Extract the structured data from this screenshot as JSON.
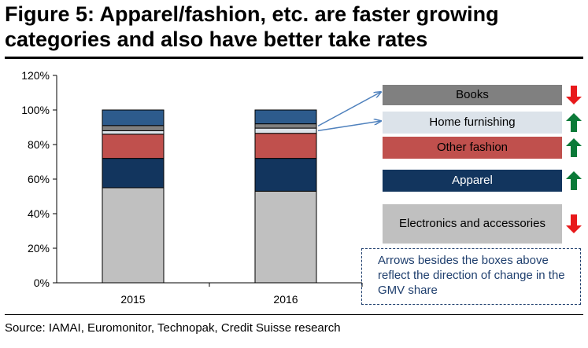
{
  "title": {
    "line1": "Figure 5: Apparel/fashion, etc. are faster growing",
    "line2": "categories and also have better take rates"
  },
  "source": "Source: IAMAI, Euromonitor, Technopak, Credit Suisse research",
  "note": "Arrows besides the boxes above reflect the direction of change in the GMV share",
  "colors": {
    "electronics": "#c0c0c0",
    "apparel": "#12355e",
    "other_fashion": "#c0504d",
    "home_furnishing": "#dce3ea",
    "books": "#808080",
    "others": "#2d5b8c",
    "arrow_up": "#0b7a38",
    "arrow_down": "#e8191b",
    "callout": "#4f81bd"
  },
  "legend": [
    {
      "label": "Books",
      "key": "books",
      "direction": "down",
      "text_color": "#000000",
      "arrow_icon": "arrow-down-icon"
    },
    {
      "label": "Home furnishing",
      "key": "home_furnishing",
      "direction": "up",
      "text_color": "#000000",
      "arrow_icon": "arrow-up-icon"
    },
    {
      "label": "Other fashion",
      "key": "other_fashion",
      "direction": "up",
      "text_color": "#000000",
      "arrow_icon": "arrow-up-icon"
    },
    {
      "label": "Apparel",
      "key": "apparel",
      "direction": "up",
      "text_color": "#ffffff",
      "arrow_icon": "arrow-up-icon"
    },
    {
      "label": "Electronics and accessories",
      "key": "electronics",
      "direction": "down",
      "text_color": "#000000",
      "arrow_icon": "arrow-down-icon"
    }
  ],
  "chart_data": {
    "type": "bar",
    "stacked": true,
    "categories": [
      "2015",
      "2016"
    ],
    "ylim": [
      0,
      120
    ],
    "yticks": [
      0,
      20,
      40,
      60,
      80,
      100,
      120
    ],
    "ytick_labels": [
      "0%",
      "20%",
      "40%",
      "60%",
      "80%",
      "100%",
      "120%"
    ],
    "grid": false,
    "series": [
      {
        "key": "electronics",
        "name": "Electronics and accessories",
        "values": [
          55,
          53
        ]
      },
      {
        "key": "apparel",
        "name": "Apparel",
        "values": [
          17,
          19
        ]
      },
      {
        "key": "other_fashion",
        "name": "Other fashion",
        "values": [
          14,
          14.5
        ]
      },
      {
        "key": "home_furnishing",
        "name": "Home furnishing",
        "values": [
          2,
          3
        ]
      },
      {
        "key": "books",
        "name": "Books",
        "values": [
          3,
          2.5
        ]
      },
      {
        "key": "others",
        "values": [
          9,
          8
        ]
      }
    ]
  }
}
